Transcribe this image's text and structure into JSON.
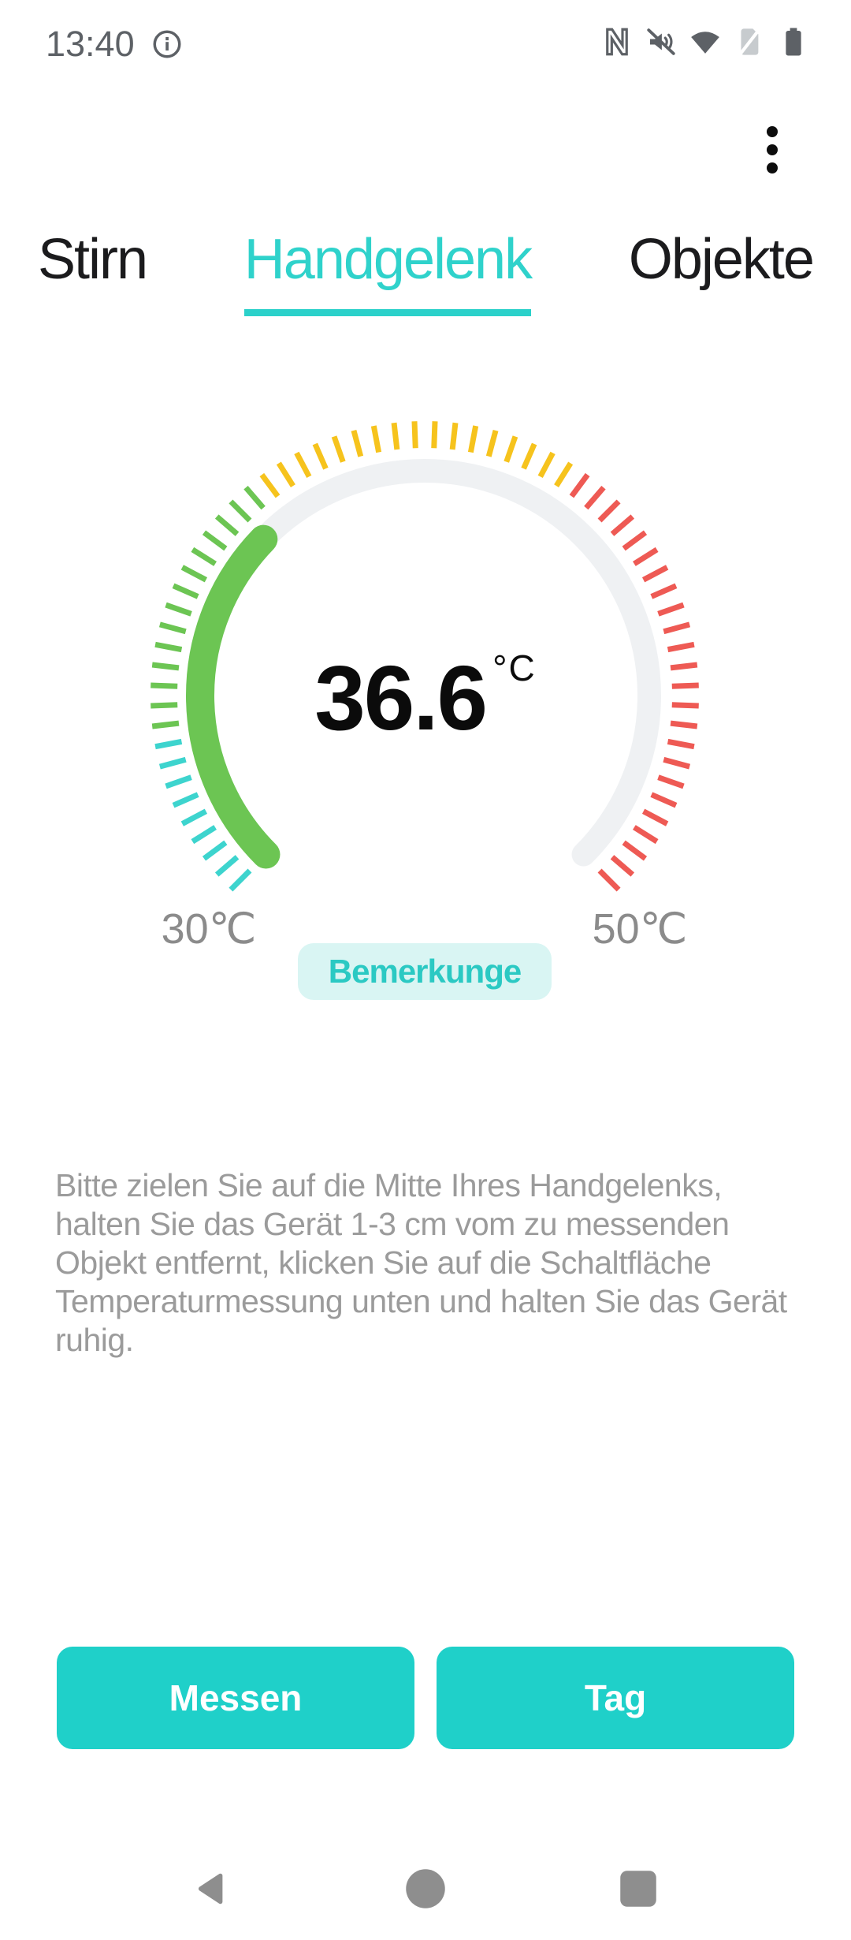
{
  "status_bar": {
    "time": "13:40",
    "left_icons": [
      "info-icon"
    ],
    "right_icons": [
      "nfc-icon",
      "sound-muted-icon",
      "wifi-icon",
      "no-sim-icon",
      "battery-icon"
    ]
  },
  "menu": {
    "more_options_icon": "kebab-menu-icon"
  },
  "tabs": {
    "items": [
      {
        "label": "Stirn",
        "selected": false
      },
      {
        "label": "Handgelenk",
        "selected": true
      },
      {
        "label": "Objekte",
        "selected": false
      }
    ]
  },
  "chart_data": {
    "type": "gauge",
    "value": 36.6,
    "value_text": "36.6",
    "unit": "°C",
    "min": 30,
    "max": 50,
    "min_label": "30℃",
    "max_label": "50℃",
    "start_angle": 135,
    "end_angle": 405,
    "track_color": "#eff1f3",
    "progress_color": "#6cc553",
    "tick_count": 64,
    "tick_segments": [
      {
        "to_angle": 172,
        "color": "#3dd4ce"
      },
      {
        "to_angle": 230,
        "color": "#6cc553"
      },
      {
        "to_angle": 305,
        "color": "#f6c31d"
      },
      {
        "to_angle": 405,
        "color": "#ee5a54"
      }
    ]
  },
  "notes_button": {
    "label": "Bemerkunge"
  },
  "instructions": "Bitte zielen Sie auf die Mitte Ihres Handgelenks, halten Sie das Gerät 1-3 cm vom zu messenden Objekt entfernt, klicken Sie auf die Schaltfläche Temperaturmessung unten und halten Sie das Gerät ruhig.",
  "actions": {
    "measure_label": "Messen",
    "tag_label": "Tag"
  },
  "nav_bar": {
    "icons": [
      "back-icon",
      "home-icon",
      "recents-icon"
    ]
  },
  "colors": {
    "accent_teal": "#1fd0c9",
    "accent_teal_light": "#d9f5f3",
    "tab_selected": "#2fd2cb",
    "gauge_green": "#6cc553",
    "gauge_yellow": "#f6c31d",
    "gauge_red": "#ee5a54",
    "gauge_cyan": "#3dd4ce",
    "gauge_track": "#eff1f3",
    "text_gray": "#9b9b9b"
  }
}
